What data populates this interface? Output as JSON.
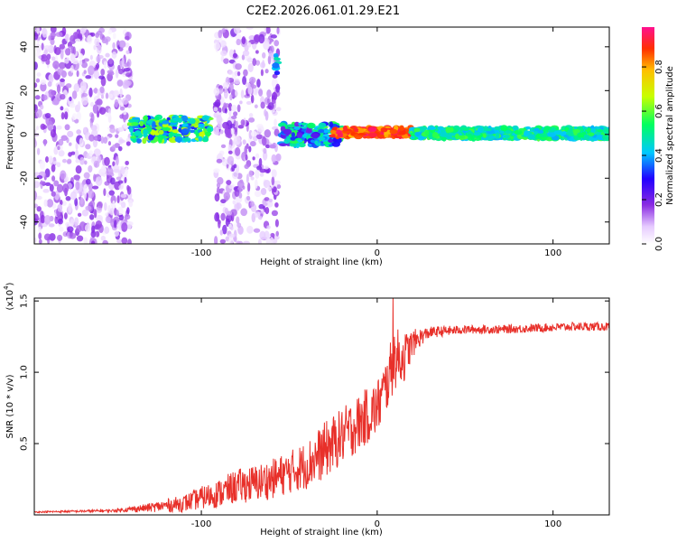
{
  "chart_data": [
    {
      "type": "heatmap",
      "title": "C2E2.2026.061.01.29.E21",
      "xlabel": "Height of straight line (km)",
      "ylabel": "Frequency (Hz)",
      "xlim": [
        -195,
        132
      ],
      "ylim": [
        -50,
        49
      ],
      "xticks": [
        -100,
        0,
        100
      ],
      "yticks": [
        -40,
        -20,
        0,
        20,
        40
      ],
      "colorbar": {
        "label": "Normalized spectral amplitude",
        "range": [
          0,
          0.98
        ],
        "ticks": [
          0.0,
          0.2,
          0.4,
          0.6,
          0.8
        ]
      },
      "regions": [
        {
          "x": [
            -195,
            -140
          ],
          "freq": [
            -50,
            49
          ],
          "amplitude": [
            0.02,
            0.2
          ],
          "desc": "broadband noise"
        },
        {
          "x": [
            -140,
            -95
          ],
          "freq": [
            -3,
            8
          ],
          "amplitude": [
            0.3,
            0.7
          ],
          "desc": "narrow band near 3 Hz"
        },
        {
          "x": [
            -92,
            -56
          ],
          "freq": [
            -50,
            49
          ],
          "amplitude": [
            0.02,
            0.2
          ],
          "desc": "broadband noise"
        },
        {
          "x": [
            -58,
            -56
          ],
          "freq": [
            28,
            36
          ],
          "amplitude": [
            0.3,
            0.5
          ],
          "desc": "spot near 32 Hz"
        },
        {
          "x": [
            -55,
            -20
          ],
          "freq": [
            -5,
            5
          ],
          "amplitude": [
            0.2,
            0.6
          ],
          "desc": "band near 0 Hz"
        },
        {
          "x": [
            -25,
            20
          ],
          "freq": [
            -1,
            3
          ],
          "amplitude": [
            0.8,
            0.98
          ],
          "desc": "strong line near 1 Hz"
        },
        {
          "x": [
            20,
            132
          ],
          "freq": [
            -2,
            3
          ],
          "amplitude": [
            0.4,
            0.6
          ],
          "desc": "steady band near 0 Hz"
        }
      ]
    },
    {
      "type": "line",
      "xlabel": "Height of straight line (km)",
      "ylabel": "SNR (10 * v/v)",
      "y_multiplier_label": "(x10",
      "y_multiplier_exponent": "4",
      "xlim": [
        -195,
        132
      ],
      "ylim": [
        0,
        1.52
      ],
      "xticks": [
        -100,
        0,
        100
      ],
      "yticks": [
        0.5,
        1.0,
        1.5
      ],
      "yticklabels": [
        "0.5",
        "1.0",
        "1.5"
      ],
      "series": [
        {
          "name": "SNR",
          "color": "#e8302a",
          "x": [
            -195,
            -150,
            -130,
            -110,
            -100,
            -90,
            -80,
            -70,
            -60,
            -50,
            -40,
            -30,
            -20,
            -10,
            0,
            5,
            10,
            15,
            20,
            25,
            30,
            50,
            70,
            90,
            110,
            132
          ],
          "y": [
            0.02,
            0.03,
            0.05,
            0.08,
            0.12,
            0.15,
            0.2,
            0.22,
            0.25,
            0.3,
            0.35,
            0.45,
            0.55,
            0.65,
            0.75,
            0.9,
            1.1,
            1.1,
            1.2,
            1.25,
            1.28,
            1.3,
            1.3,
            1.31,
            1.32,
            1.32
          ],
          "noise": [
            0.005,
            0.01,
            0.03,
            0.06,
            0.08,
            0.1,
            0.12,
            0.13,
            0.14,
            0.15,
            0.17,
            0.2,
            0.2,
            0.2,
            0.2,
            0.2,
            0.22,
            0.18,
            0.1,
            0.06,
            0.04,
            0.03,
            0.03,
            0.03,
            0.03,
            0.03
          ],
          "peak": {
            "x": 9,
            "y": 1.52
          }
        }
      ]
    }
  ]
}
